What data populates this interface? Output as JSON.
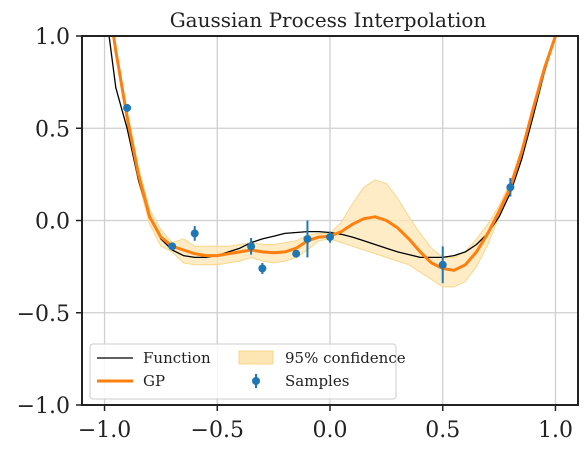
{
  "chart_data": {
    "type": "line",
    "title": "Gaussian Process Interpolation",
    "xlabel": "",
    "ylabel": "",
    "xlim": [
      -1.1,
      1.1
    ],
    "ylim": [
      -1.0,
      1.0
    ],
    "grid": true,
    "legend_position": "lower-left",
    "x_ticks": [
      -1.0,
      -0.5,
      0.0,
      0.5,
      1.0
    ],
    "x_tick_labels": [
      "−1.0",
      "−0.5",
      "0.0",
      "0.5",
      "1.0"
    ],
    "y_ticks": [
      -1.0,
      -0.5,
      0.0,
      0.5,
      1.0
    ],
    "y_tick_labels": [
      "−1.0",
      "−0.5",
      "0.0",
      "0.5",
      "1.0"
    ],
    "series": [
      {
        "name": "Function",
        "kind": "line",
        "color": "#000000",
        "x": [
          -0.98,
          -0.95,
          -0.9,
          -0.85,
          -0.8,
          -0.75,
          -0.7,
          -0.65,
          -0.6,
          -0.55,
          -0.5,
          -0.45,
          -0.4,
          -0.35,
          -0.3,
          -0.25,
          -0.2,
          -0.15,
          -0.1,
          -0.05,
          0.0,
          0.05,
          0.1,
          0.15,
          0.2,
          0.25,
          0.3,
          0.35,
          0.4,
          0.45,
          0.5,
          0.55,
          0.6,
          0.65,
          0.7,
          0.75,
          0.8,
          0.85,
          0.9,
          0.95,
          0.98,
          1.0
        ],
        "y": [
          1.0,
          0.72,
          0.5,
          0.22,
          0.02,
          -0.1,
          -0.16,
          -0.19,
          -0.2,
          -0.2,
          -0.19,
          -0.17,
          -0.15,
          -0.12,
          -0.1,
          -0.085,
          -0.07,
          -0.065,
          -0.06,
          -0.06,
          -0.065,
          -0.075,
          -0.09,
          -0.11,
          -0.13,
          -0.15,
          -0.17,
          -0.185,
          -0.2,
          -0.2,
          -0.2,
          -0.19,
          -0.17,
          -0.13,
          -0.07,
          0.02,
          0.15,
          0.33,
          0.56,
          0.8,
          0.92,
          1.0
        ]
      },
      {
        "name": "GP",
        "kind": "line",
        "color": "#ff7f0e",
        "x": [
          -0.96,
          -0.95,
          -0.9,
          -0.85,
          -0.8,
          -0.75,
          -0.7,
          -0.65,
          -0.6,
          -0.55,
          -0.5,
          -0.45,
          -0.4,
          -0.35,
          -0.3,
          -0.25,
          -0.2,
          -0.15,
          -0.1,
          -0.05,
          0.0,
          0.05,
          0.1,
          0.15,
          0.2,
          0.25,
          0.3,
          0.35,
          0.4,
          0.45,
          0.5,
          0.55,
          0.6,
          0.65,
          0.7,
          0.75,
          0.8,
          0.85,
          0.9,
          0.95,
          1.0
        ],
        "y": [
          1.0,
          0.92,
          0.56,
          0.25,
          0.02,
          -0.09,
          -0.14,
          -0.16,
          -0.18,
          -0.19,
          -0.19,
          -0.18,
          -0.17,
          -0.16,
          -0.17,
          -0.175,
          -0.17,
          -0.15,
          -0.11,
          -0.09,
          -0.085,
          -0.06,
          -0.02,
          0.01,
          0.02,
          0.0,
          -0.04,
          -0.1,
          -0.17,
          -0.23,
          -0.26,
          -0.27,
          -0.24,
          -0.17,
          -0.07,
          0.05,
          0.18,
          0.37,
          0.6,
          0.82,
          1.0
        ]
      },
      {
        "name": "95% confidence",
        "kind": "band",
        "color": "#fde6b3",
        "x": [
          -0.96,
          -0.9,
          -0.85,
          -0.8,
          -0.75,
          -0.7,
          -0.65,
          -0.6,
          -0.55,
          -0.5,
          -0.45,
          -0.4,
          -0.35,
          -0.3,
          -0.25,
          -0.2,
          -0.15,
          -0.1,
          -0.05,
          0.0,
          0.05,
          0.1,
          0.15,
          0.2,
          0.25,
          0.3,
          0.35,
          0.4,
          0.45,
          0.5,
          0.55,
          0.6,
          0.65,
          0.7,
          0.75,
          0.8,
          0.85,
          0.9,
          0.95,
          1.0
        ],
        "upper": [
          1.0,
          0.6,
          0.29,
          0.06,
          -0.05,
          -0.12,
          -0.1,
          -0.14,
          -0.14,
          -0.14,
          -0.14,
          -0.13,
          -0.12,
          -0.13,
          -0.13,
          -0.12,
          -0.11,
          -0.08,
          -0.07,
          -0.07,
          -0.01,
          0.09,
          0.18,
          0.22,
          0.2,
          0.12,
          0.02,
          -0.07,
          -0.15,
          -0.2,
          -0.2,
          -0.17,
          -0.1,
          -0.02,
          0.08,
          0.21,
          0.39,
          0.62,
          0.84,
          1.0
        ],
        "lower": [
          1.0,
          0.52,
          0.21,
          -0.02,
          -0.14,
          -0.17,
          -0.23,
          -0.24,
          -0.24,
          -0.24,
          -0.23,
          -0.22,
          -0.2,
          -0.22,
          -0.23,
          -0.22,
          -0.2,
          -0.16,
          -0.11,
          -0.1,
          -0.12,
          -0.14,
          -0.16,
          -0.18,
          -0.2,
          -0.22,
          -0.24,
          -0.28,
          -0.32,
          -0.36,
          -0.36,
          -0.33,
          -0.25,
          -0.13,
          0.02,
          0.15,
          0.35,
          0.58,
          0.8,
          1.0
        ]
      },
      {
        "name": "Samples",
        "kind": "errorbar",
        "color": "#1f77b4",
        "x": [
          -0.9,
          -0.7,
          -0.6,
          -0.35,
          -0.3,
          -0.15,
          -0.1,
          0.0,
          0.5,
          0.8
        ],
        "y": [
          0.61,
          -0.14,
          -0.07,
          -0.14,
          -0.26,
          -0.18,
          -0.1,
          -0.09,
          -0.24,
          0.18
        ],
        "yerr": [
          0.02,
          0.01,
          0.04,
          0.045,
          0.03,
          0.015,
          0.1,
          0.03,
          0.1,
          0.05
        ]
      }
    ]
  }
}
